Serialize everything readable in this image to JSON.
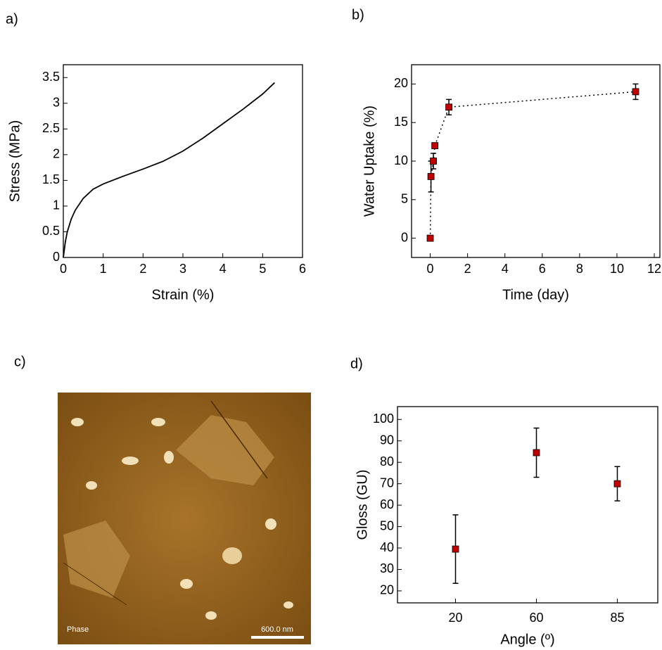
{
  "chart_data": [
    {
      "type": "line",
      "label": "a)",
      "x_label": "Strain (%)",
      "y_label": "Stress (MPa)",
      "color": "#000000",
      "x": [
        0,
        0.05,
        0.1,
        0.2,
        0.3,
        0.5,
        0.75,
        1,
        1.5,
        2,
        2.5,
        3,
        3.5,
        4,
        4.5,
        5,
        5.3
      ],
      "values": [
        0,
        0.3,
        0.5,
        0.75,
        0.92,
        1.15,
        1.33,
        1.43,
        1.58,
        1.72,
        1.87,
        2.07,
        2.32,
        2.6,
        2.88,
        3.18,
        3.4
      ],
      "xlim": [
        0,
        6
      ],
      "xticks": [
        0,
        1,
        2,
        3,
        4,
        5,
        6
      ],
      "ylim": [
        0,
        3.75
      ],
      "yticks": [
        0,
        0.5,
        1,
        1.5,
        2,
        2.5,
        3,
        3.5
      ]
    },
    {
      "type": "scatter",
      "label": "b)",
      "x_label": "Time (day)",
      "y_label": "Water Uptake (%)",
      "color": "#c00000",
      "x": [
        0,
        0.04,
        0.17,
        0.25,
        1,
        11
      ],
      "values": [
        0,
        8,
        10,
        12,
        17,
        19
      ],
      "errors": [
        0.3,
        2,
        1,
        0.3,
        1,
        1
      ],
      "xlim": [
        -1,
        12.3
      ],
      "xticks": [
        0,
        2,
        4,
        6,
        8,
        10,
        12
      ],
      "ylim": [
        -2.5,
        22.5
      ],
      "yticks": [
        0,
        5,
        10,
        15,
        20
      ]
    },
    {
      "type": "image",
      "label": "c)",
      "annotations": [
        "Phase",
        "600.0 nm"
      ]
    },
    {
      "type": "category-scatter",
      "label": "d)",
      "x_label": "Angle (º)",
      "y_label": "Gloss (GU)",
      "color": "#c00000",
      "categories": [
        "20",
        "60",
        "85"
      ],
      "values": [
        39.5,
        84.5,
        70
      ],
      "errors": [
        16,
        11.5,
        8
      ],
      "ylim": [
        14.4,
        106
      ],
      "yticks": [
        20,
        30,
        40,
        50,
        60,
        70,
        80,
        90,
        100
      ]
    }
  ]
}
